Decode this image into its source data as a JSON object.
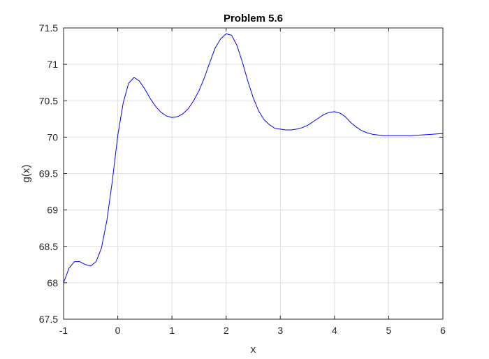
{
  "chart_data": {
    "type": "line",
    "title": "Problem 5.6",
    "xlabel": "x",
    "ylabel": "g(x)",
    "xlim": [
      -1,
      6
    ],
    "ylim": [
      67.5,
      71.5
    ],
    "xticks": [
      -1,
      0,
      1,
      2,
      3,
      4,
      5,
      6
    ],
    "yticks": [
      67.5,
      68,
      68.5,
      69,
      69.5,
      70,
      70.5,
      71,
      71.5
    ],
    "xtick_labels": [
      "-1",
      "0",
      "1",
      "2",
      "3",
      "4",
      "5",
      "6"
    ],
    "ytick_labels": [
      "67.5",
      "68",
      "68.5",
      "69",
      "69.5",
      "70",
      "70.5",
      "71",
      "71.5"
    ],
    "grid": true,
    "box": true,
    "series": [
      {
        "color": "#0000ff",
        "x": [
          -1.0,
          -0.9,
          -0.8,
          -0.7,
          -0.6,
          -0.5,
          -0.4,
          -0.3,
          -0.2,
          -0.1,
          0.0,
          0.1,
          0.2,
          0.3,
          0.4,
          0.5,
          0.6,
          0.7,
          0.8,
          0.9,
          1.0,
          1.1,
          1.2,
          1.3,
          1.4,
          1.5,
          1.6,
          1.7,
          1.8,
          1.9,
          2.0,
          2.1,
          2.2,
          2.3,
          2.4,
          2.5,
          2.6,
          2.7,
          2.8,
          2.9,
          3.0,
          3.1,
          3.2,
          3.3,
          3.4,
          3.5,
          3.6,
          3.7,
          3.8,
          3.9,
          4.0,
          4.1,
          4.2,
          4.3,
          4.4,
          4.5,
          4.6,
          4.7,
          4.8,
          4.9,
          5.0,
          5.2,
          5.4,
          5.6,
          5.8,
          6.0
        ],
        "y": [
          68.0,
          68.2,
          68.29,
          68.29,
          68.25,
          68.23,
          68.29,
          68.48,
          68.86,
          69.4,
          70.02,
          70.47,
          70.74,
          70.82,
          70.77,
          70.66,
          70.53,
          70.42,
          70.34,
          70.29,
          70.27,
          70.28,
          70.32,
          70.39,
          70.5,
          70.64,
          70.82,
          71.03,
          71.23,
          71.35,
          71.42,
          71.4,
          71.26,
          71.03,
          70.77,
          70.54,
          70.36,
          70.24,
          70.17,
          70.12,
          70.11,
          70.1,
          70.1,
          70.11,
          70.13,
          70.16,
          70.21,
          70.26,
          70.31,
          70.34,
          70.35,
          70.33,
          70.28,
          70.2,
          70.14,
          70.09,
          70.06,
          70.04,
          70.03,
          70.02,
          70.02,
          70.02,
          70.02,
          70.03,
          70.04,
          70.05
        ]
      }
    ]
  }
}
